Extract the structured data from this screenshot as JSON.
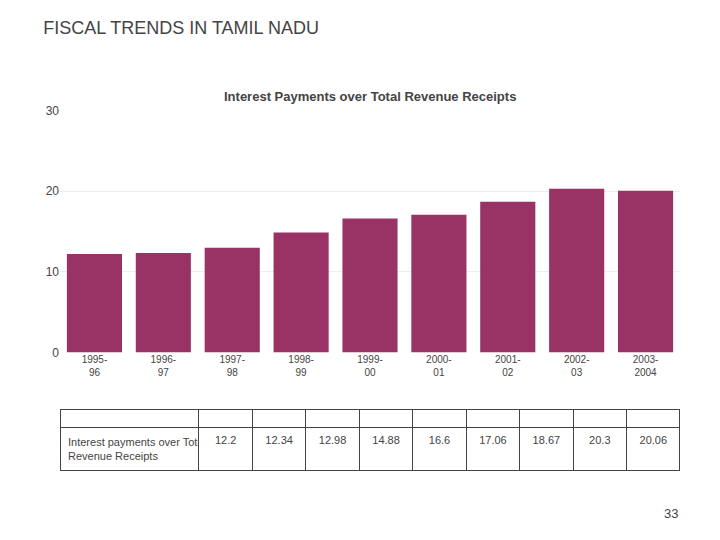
{
  "chart_data": {
    "type": "bar",
    "title": "FISCAL TRENDS IN TAMIL NADU",
    "subtitle": "Interest Payments over Total Revenue Receipts",
    "categories": [
      "1995-\n96",
      "1996-\n97",
      "1997-\n98",
      "1998-\n99",
      "1999-\n00",
      "2000-\n01",
      "2001-\n02",
      "2002-\n03",
      "2003-\n2004"
    ],
    "values": [
      12.2,
      12.34,
      12.98,
      14.88,
      16.6,
      17.06,
      18.67,
      20.3,
      20.06
    ],
    "color": "#993366",
    "ylim": [
      0,
      30
    ],
    "yticks": [
      0,
      10,
      20,
      30
    ],
    "grid": true,
    "table": {
      "row_label": "Interest payments over Total\nRevenue Receipts",
      "values": [
        12.2,
        12.34,
        12.98,
        14.88,
        16.6,
        17.06,
        18.67,
        20.3,
        20.06
      ]
    },
    "annotations": [
      "33"
    ]
  }
}
